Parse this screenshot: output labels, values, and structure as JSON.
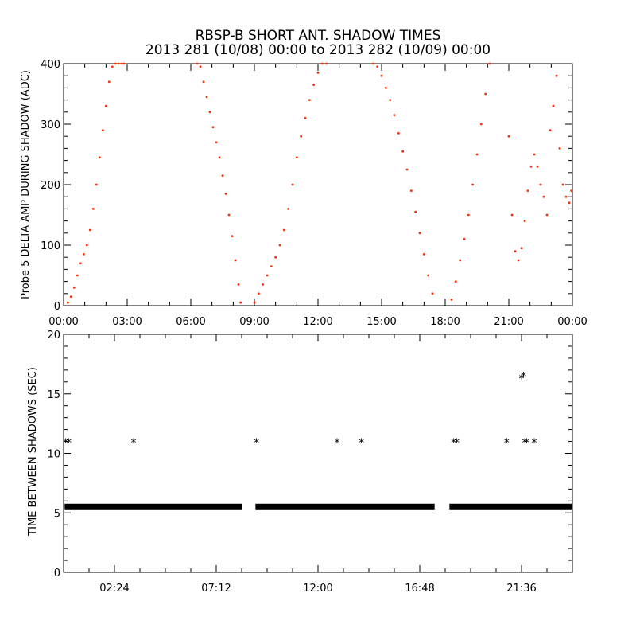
{
  "header": {
    "title": "RBSP-B SHORT ANT. SHADOW TIMES",
    "subtitle": "2013 281 (10/08) 00:00 to 2013 282 (10/09) 00:00"
  },
  "colors": {
    "amp_points": "#ff2a00",
    "shadow_points": "#000000",
    "axes": "#000000"
  },
  "chart_data": [
    {
      "type": "scatter",
      "ylabel": "Probe 5 DELTA AMP DURING SHADOW (ADC)",
      "xlabel": "",
      "xlim": [
        0,
        24
      ],
      "ylim": [
        0,
        400
      ],
      "xticks": [
        {
          "value": 0,
          "label": "00:00"
        },
        {
          "value": 3,
          "label": "03:00"
        },
        {
          "value": 6,
          "label": "06:00"
        },
        {
          "value": 9,
          "label": "09:00"
        },
        {
          "value": 12,
          "label": "12:00"
        },
        {
          "value": 15,
          "label": "15:00"
        },
        {
          "value": 18,
          "label": "18:00"
        },
        {
          "value": 21,
          "label": "21:00"
        },
        {
          "value": 24,
          "label": "00:00"
        }
      ],
      "yticks": [
        {
          "value": 0,
          "label": "0"
        },
        {
          "value": 100,
          "label": "100"
        },
        {
          "value": 200,
          "label": "200"
        },
        {
          "value": 300,
          "label": "300"
        },
        {
          "value": 400,
          "label": "400"
        }
      ],
      "series": [
        {
          "color": "#ff2a00",
          "marker": "dot",
          "x": [
            0.2,
            0.35,
            0.5,
            0.65,
            0.8,
            0.95,
            1.1,
            1.25,
            1.4,
            1.55,
            1.7,
            1.85,
            2.0,
            2.15,
            2.3,
            2.45,
            2.6,
            2.75,
            2.85,
            6.3,
            6.45,
            6.6,
            6.75,
            6.9,
            7.05,
            7.2,
            7.35,
            7.5,
            7.65,
            7.8,
            7.95,
            8.1,
            8.25,
            8.35,
            9.0,
            9.2,
            9.4,
            9.6,
            9.8,
            10.0,
            10.2,
            10.4,
            10.6,
            10.8,
            11.0,
            11.2,
            11.4,
            11.6,
            11.8,
            12.0,
            12.2,
            12.4,
            14.6,
            14.8,
            15.0,
            15.2,
            15.4,
            15.6,
            15.8,
            16.0,
            16.2,
            16.4,
            16.6,
            16.8,
            17.0,
            17.2,
            17.4,
            18.3,
            18.5,
            18.7,
            18.9,
            19.1,
            19.3,
            19.5,
            19.7,
            19.9,
            20.1,
            21.0,
            21.15,
            21.3,
            21.45,
            21.6,
            21.75,
            21.9,
            22.05,
            22.2,
            22.35,
            22.5,
            22.65,
            22.8,
            22.95,
            23.1,
            23.25,
            23.4,
            23.55,
            23.7,
            23.85,
            23.95
          ],
          "y": [
            5,
            15,
            30,
            50,
            70,
            85,
            100,
            125,
            160,
            200,
            245,
            290,
            330,
            370,
            395,
            400,
            400,
            400,
            400,
            400,
            395,
            370,
            345,
            320,
            295,
            270,
            245,
            215,
            185,
            150,
            115,
            75,
            35,
            5,
            5,
            20,
            35,
            50,
            65,
            80,
            100,
            125,
            160,
            200,
            245,
            280,
            310,
            340,
            365,
            385,
            400,
            400,
            400,
            395,
            380,
            360,
            340,
            315,
            285,
            255,
            225,
            190,
            155,
            120,
            85,
            50,
            20,
            10,
            40,
            75,
            110,
            150,
            200,
            250,
            300,
            350,
            400,
            280,
            150,
            90,
            75,
            95,
            140,
            190,
            230,
            250,
            230,
            200,
            180,
            150,
            290,
            330,
            380,
            260,
            200,
            180,
            170,
            190
          ]
        }
      ]
    },
    {
      "type": "scatter",
      "ylabel": "TIME BETWEEN SHADOWS (SEC)",
      "xlabel": "",
      "xlim": [
        0,
        24
      ],
      "ylim": [
        0,
        20
      ],
      "xticks": [
        {
          "value": 2.4,
          "label": "02:24"
        },
        {
          "value": 7.2,
          "label": "07:12"
        },
        {
          "value": 12.0,
          "label": "12:00"
        },
        {
          "value": 16.8,
          "label": "16:48"
        },
        {
          "value": 21.6,
          "label": "21:36"
        }
      ],
      "yticks": [
        {
          "value": 0,
          "label": "0"
        },
        {
          "value": 5,
          "label": "5"
        },
        {
          "value": 10,
          "label": "10"
        },
        {
          "value": 15,
          "label": "15"
        },
        {
          "value": 20,
          "label": "20"
        }
      ],
      "series": [
        {
          "color": "#000000",
          "marker": "asterisk",
          "x": [
            0.1,
            0.25,
            3.3,
            9.1,
            12.9,
            14.05,
            18.4,
            18.55,
            20.9,
            21.6,
            21.7,
            21.75,
            21.85,
            22.2
          ],
          "y": [
            10.9,
            10.9,
            10.9,
            10.9,
            10.9,
            10.9,
            10.9,
            10.9,
            10.9,
            16.3,
            16.5,
            10.9,
            10.9,
            10.9
          ]
        },
        {
          "color": "#000000",
          "marker": "asterisk-band",
          "value": 5.5,
          "segments": [
            [
              0.05,
              8.4
            ],
            [
              9.05,
              17.5
            ],
            [
              18.2,
              24.0
            ]
          ]
        }
      ]
    }
  ]
}
